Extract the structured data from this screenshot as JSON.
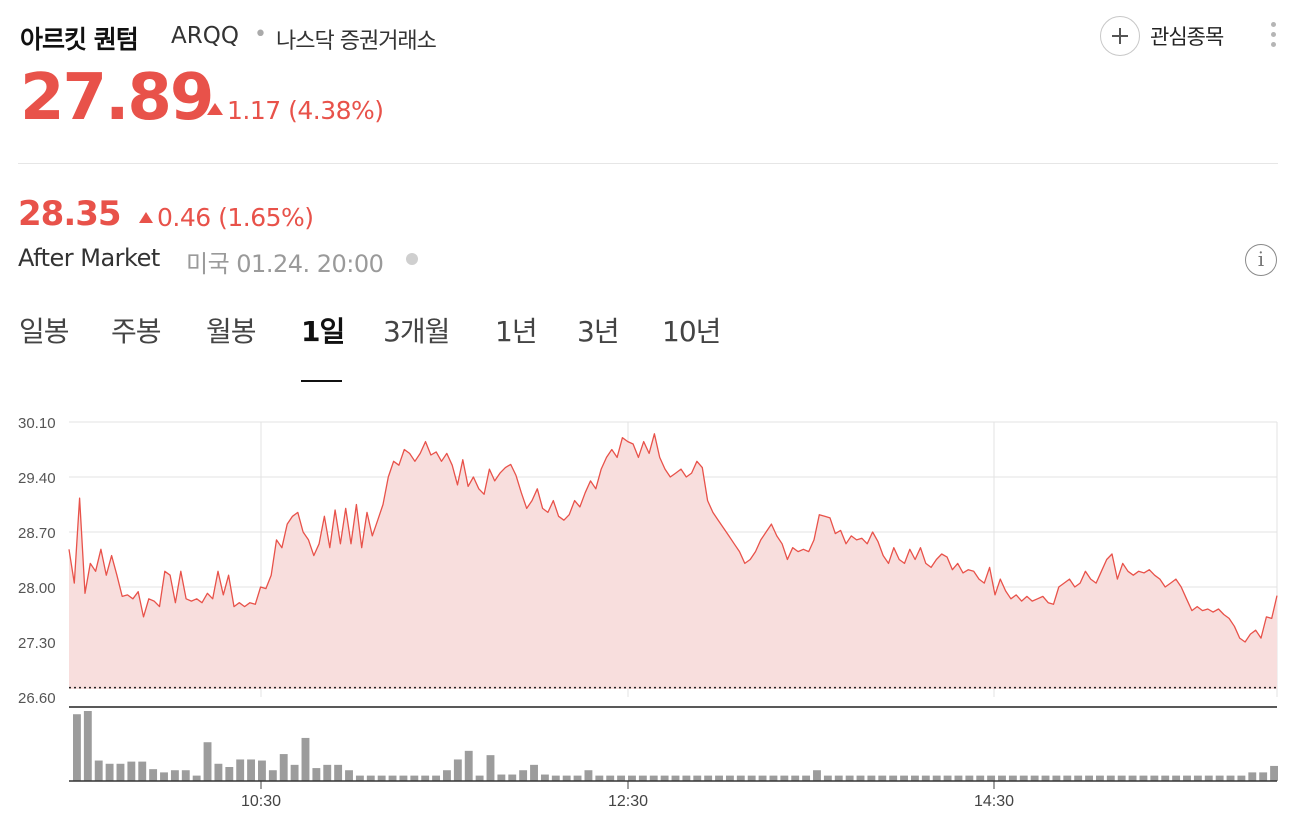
{
  "header": {
    "name": "아르킷 퀀텀",
    "ticker": "ARQQ",
    "separator": "•",
    "exchange": "나스닥 증권거래소",
    "watch_label": "관심종목"
  },
  "price": {
    "current": "27.89",
    "change": "1.17 (4.38%)",
    "after_price": "28.35",
    "after_change": "0.46 (1.65%)",
    "after_label": "After Market",
    "after_time": "미국 01.24. 20:00",
    "info_glyph": "i"
  },
  "tabs": [
    {
      "label": "일봉",
      "active": false
    },
    {
      "label": "주봉",
      "active": false
    },
    {
      "label": "월봉",
      "active": false
    },
    {
      "label": "1일",
      "active": true
    },
    {
      "label": "3개월",
      "active": false
    },
    {
      "label": "1년",
      "active": false
    },
    {
      "label": "3년",
      "active": false
    },
    {
      "label": "10년",
      "active": false
    }
  ],
  "colors": {
    "up": "#e8524a",
    "fill": "#f8dedd",
    "volume": "#9c9c9c",
    "grid": "#e3e3e3"
  },
  "chart_data": {
    "type": "area",
    "x_ticks": [
      "10:30",
      "12:30",
      "14:30"
    ],
    "y_ticks": [
      "30.10",
      "29.40",
      "28.70",
      "28.00",
      "27.30",
      "26.60"
    ],
    "ylim": [
      26.6,
      30.1
    ],
    "previous_close": 26.72,
    "grid": true,
    "price": [
      28.48,
      28.05,
      29.13,
      27.92,
      28.3,
      28.2,
      28.48,
      28.15,
      28.4,
      28.15,
      27.88,
      27.9,
      27.85,
      27.94,
      27.62,
      27.85,
      27.82,
      27.75,
      28.2,
      28.15,
      27.8,
      28.2,
      27.85,
      27.82,
      27.85,
      27.8,
      27.92,
      27.85,
      28.2,
      27.9,
      28.15,
      27.75,
      27.8,
      27.75,
      27.8,
      27.78,
      28.0,
      27.98,
      28.15,
      28.6,
      28.5,
      28.8,
      28.9,
      28.95,
      28.7,
      28.6,
      28.4,
      28.55,
      28.9,
      28.5,
      28.98,
      28.55,
      29.0,
      28.55,
      29.05,
      28.5,
      28.95,
      28.65,
      28.85,
      29.05,
      29.4,
      29.6,
      29.55,
      29.75,
      29.7,
      29.6,
      29.7,
      29.85,
      29.68,
      29.72,
      29.6,
      29.7,
      29.55,
      29.3,
      29.62,
      29.28,
      29.4,
      29.25,
      29.18,
      29.5,
      29.35,
      29.45,
      29.52,
      29.56,
      29.42,
      29.2,
      29.0,
      29.1,
      29.25,
      29.0,
      28.95,
      29.1,
      28.9,
      28.85,
      28.92,
      29.1,
      29.02,
      29.2,
      29.35,
      29.25,
      29.5,
      29.65,
      29.75,
      29.65,
      29.9,
      29.85,
      29.82,
      29.65,
      29.85,
      29.7,
      29.95,
      29.65,
      29.5,
      29.4,
      29.45,
      29.5,
      29.4,
      29.45,
      29.6,
      29.52,
      29.1,
      28.95,
      28.85,
      28.75,
      28.65,
      28.55,
      28.45,
      28.3,
      28.35,
      28.45,
      28.6,
      28.7,
      28.8,
      28.65,
      28.55,
      28.35,
      28.5,
      28.45,
      28.48,
      28.45,
      28.6,
      28.92,
      28.9,
      28.88,
      28.68,
      28.72,
      28.55,
      28.65,
      28.6,
      28.62,
      28.55,
      28.7,
      28.58,
      28.4,
      28.3,
      28.5,
      28.35,
      28.3,
      28.48,
      28.35,
      28.5,
      28.3,
      28.25,
      28.35,
      28.42,
      28.38,
      28.22,
      28.3,
      28.18,
      28.22,
      28.2,
      28.1,
      28.05,
      28.25,
      27.9,
      28.1,
      27.95,
      27.85,
      27.9,
      27.82,
      27.88,
      27.82,
      27.85,
      27.88,
      27.8,
      27.78,
      28.0,
      28.05,
      28.1,
      28.0,
      28.05,
      28.2,
      28.1,
      28.05,
      28.2,
      28.35,
      28.42,
      28.1,
      28.3,
      28.2,
      28.15,
      28.2,
      28.18,
      28.22,
      28.15,
      28.1,
      28.0,
      28.05,
      28.1,
      28.0,
      27.85,
      27.7,
      27.75,
      27.7,
      27.72,
      27.68,
      27.72,
      27.65,
      27.6,
      27.5,
      27.35,
      27.3,
      27.4,
      27.45,
      27.35,
      27.62,
      27.6,
      27.89
    ],
    "volume": [
      62,
      65,
      19,
      16,
      16,
      18,
      18,
      11,
      8,
      10,
      10,
      5,
      36,
      16,
      13,
      20,
      20,
      19,
      10,
      25,
      15,
      40,
      12,
      15,
      15,
      10,
      5,
      5,
      5,
      5,
      5,
      5,
      5,
      5,
      10,
      20,
      28,
      5,
      24,
      6,
      6,
      10,
      15,
      6,
      5,
      5,
      5,
      10,
      5,
      5,
      5,
      5,
      5,
      5,
      5,
      5,
      5,
      5,
      5,
      5,
      5,
      5,
      5,
      5,
      5,
      5,
      5,
      5,
      10,
      5,
      5,
      5,
      5,
      5,
      5,
      5,
      5,
      5,
      5,
      5,
      5,
      5,
      5,
      5,
      5,
      5,
      5,
      5,
      5,
      5,
      5,
      5,
      5,
      5,
      5,
      5,
      5,
      5,
      5,
      5,
      5,
      5,
      5,
      5,
      5,
      5,
      5,
      5,
      8,
      8,
      14
    ]
  }
}
